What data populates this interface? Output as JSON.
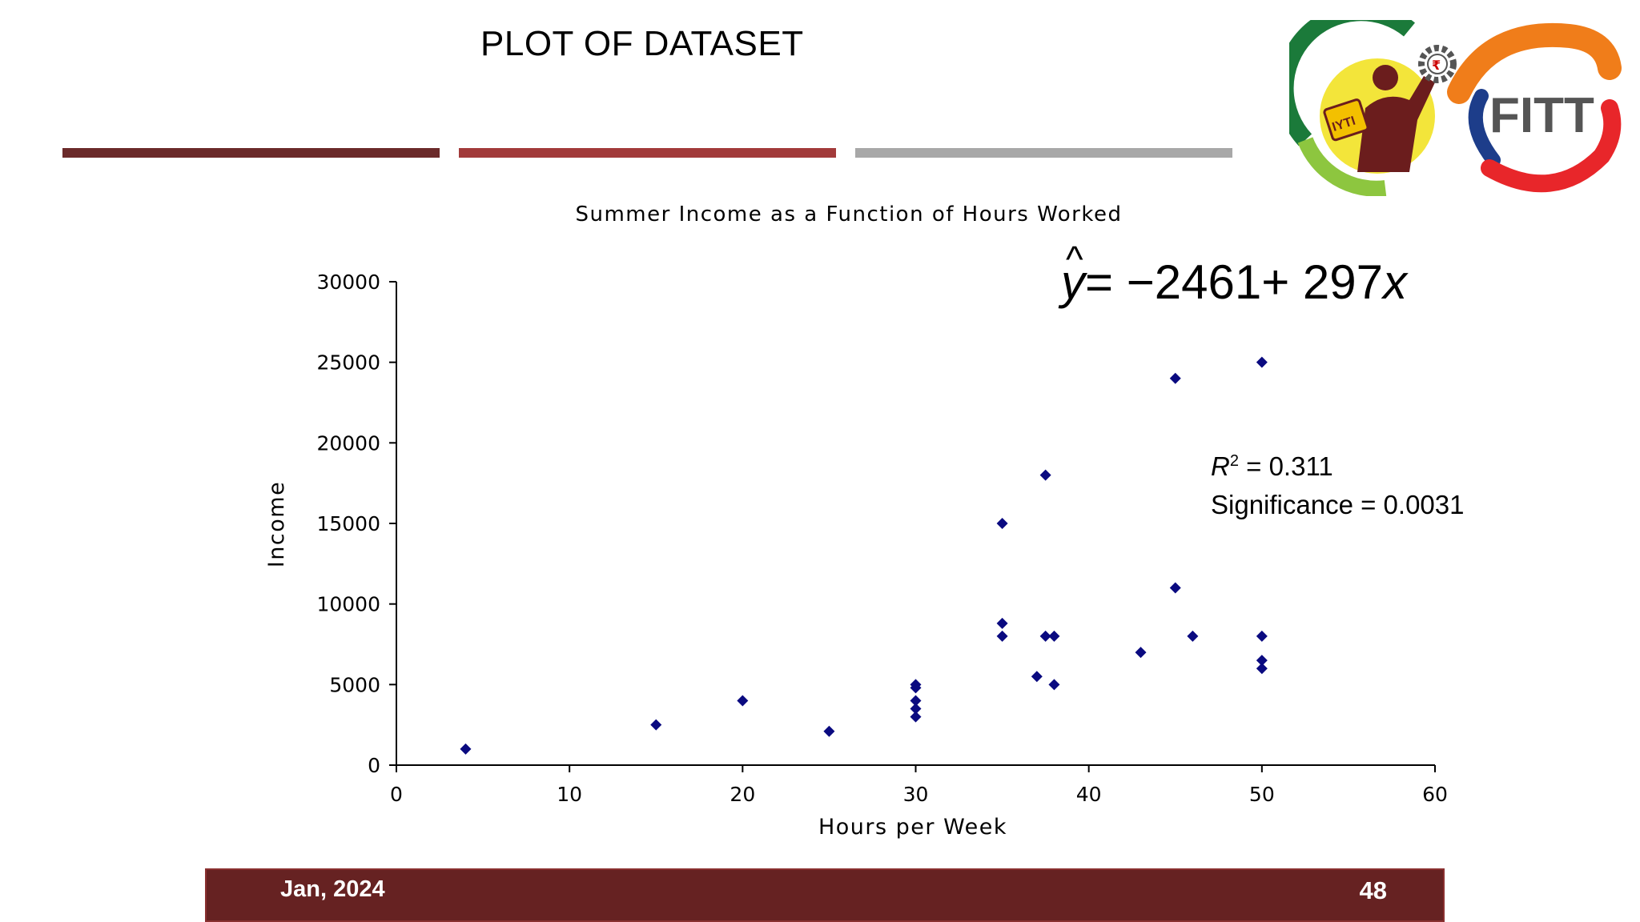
{
  "slide": {
    "title": "PLOT OF DATASET",
    "logo_text": "FITT",
    "logo_badge": "IYTI",
    "logo_symbol": "₹"
  },
  "annotations": {
    "equation": "= −2461+ 297",
    "equation_lhs": "y",
    "equation_hat": "^",
    "equation_var": "x",
    "r2_label": "R",
    "r2_sup": "2",
    "r2_value": " = 0.311",
    "significance": "Significance = 0.0031"
  },
  "footer": {
    "date": "Jan, 2024",
    "page": "48"
  },
  "colors": {
    "footer_bg": "#662222",
    "marker": "#0a0a80",
    "bar1": "#6b2a2a",
    "bar2": "#a23a3a",
    "bar3": "#a8a8a8"
  },
  "chart_data": {
    "type": "scatter",
    "title": "Summer Income as a Function of Hours Worked",
    "xlabel": "Hours per Week",
    "ylabel": "Income",
    "xlim": [
      0,
      60
    ],
    "ylim": [
      0,
      30000
    ],
    "xticks": [
      0,
      10,
      20,
      30,
      40,
      50,
      60
    ],
    "yticks": [
      0,
      5000,
      10000,
      15000,
      20000,
      25000,
      30000
    ],
    "grid": false,
    "marker": "diamond",
    "points": [
      {
        "x": 4,
        "y": 1000
      },
      {
        "x": 15,
        "y": 2500
      },
      {
        "x": 20,
        "y": 4000
      },
      {
        "x": 25,
        "y": 2100
      },
      {
        "x": 30,
        "y": 3000
      },
      {
        "x": 30,
        "y": 3500
      },
      {
        "x": 30,
        "y": 4000
      },
      {
        "x": 30,
        "y": 4800
      },
      {
        "x": 30,
        "y": 5000
      },
      {
        "x": 35,
        "y": 8000
      },
      {
        "x": 35,
        "y": 8800
      },
      {
        "x": 35,
        "y": 15000
      },
      {
        "x": 37,
        "y": 5500
      },
      {
        "x": 37.5,
        "y": 8000
      },
      {
        "x": 37.5,
        "y": 18000
      },
      {
        "x": 38,
        "y": 8000
      },
      {
        "x": 38,
        "y": 5000
      },
      {
        "x": 43,
        "y": 7000
      },
      {
        "x": 45,
        "y": 11000
      },
      {
        "x": 45,
        "y": 24000
      },
      {
        "x": 46,
        "y": 8000
      },
      {
        "x": 50,
        "y": 8000
      },
      {
        "x": 50,
        "y": 6500
      },
      {
        "x": 50,
        "y": 6000
      },
      {
        "x": 50,
        "y": 25000
      }
    ]
  }
}
